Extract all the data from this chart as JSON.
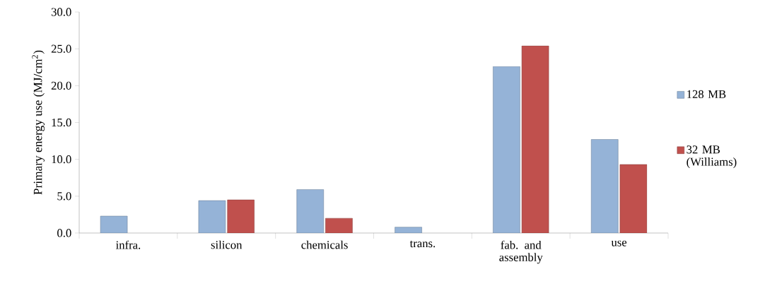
{
  "chart_data": {
    "type": "bar",
    "ylabel": "Primary energy use  (MJ/cm$^{2}$)",
    "categories": [
      "infra.",
      "silicon",
      "chemicals",
      "trans.",
      "fab. and assembly",
      "use"
    ],
    "series": [
      {
        "name": "128 MB",
        "color": "#95b3d7",
        "values": [
          2.3,
          4.4,
          5.9,
          0.8,
          22.6,
          12.7
        ]
      },
      {
        "name": "32 MB (Williams)",
        "color": "#c0504d",
        "values": [
          null,
          4.5,
          2.0,
          null,
          25.4,
          9.3
        ]
      }
    ],
    "ylim": [
      0,
      30
    ],
    "yticks": [
      {
        "value": 0,
        "label": "0.0"
      },
      {
        "value": 5,
        "label": "5.0"
      },
      {
        "value": 10,
        "label": "10.0"
      },
      {
        "value": 15,
        "label": "15.0"
      },
      {
        "value": 20,
        "label": "20.0"
      },
      {
        "value": 25,
        "label": "25.0"
      },
      {
        "value": 30,
        "label": "30.0"
      }
    ],
    "grid": false,
    "legend": "right"
  }
}
